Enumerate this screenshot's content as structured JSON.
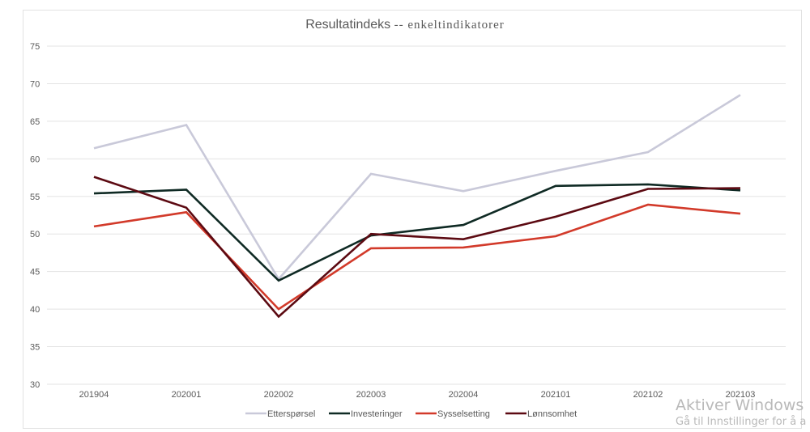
{
  "chart_data": {
    "type": "line",
    "title": "Resultatindeks",
    "subtitle": "-- enkeltindikatorer",
    "xlabel": "",
    "ylabel": "",
    "ylim": [
      30,
      75
    ],
    "yticks": [
      30,
      35,
      40,
      45,
      50,
      55,
      60,
      65,
      70,
      75
    ],
    "grid": true,
    "legend_position": "bottom",
    "categories": [
      "201904",
      "202001",
      "202002",
      "202003",
      "202004",
      "202101",
      "202102",
      "202103"
    ],
    "series": [
      {
        "name": "Etterspørsel",
        "color": "#c9c9d9",
        "values": [
          61.4,
          64.5,
          44.0,
          58.0,
          55.7,
          58.4,
          60.9,
          68.5
        ]
      },
      {
        "name": "Investeringer",
        "color": "#0f2a24",
        "values": [
          55.4,
          55.9,
          43.8,
          49.8,
          51.2,
          56.4,
          56.6,
          55.8
        ]
      },
      {
        "name": "Sysselsetting",
        "color": "#d23a2a",
        "values": [
          51.0,
          52.9,
          40.0,
          48.1,
          48.2,
          49.7,
          53.9,
          52.7
        ]
      },
      {
        "name": "Lønnsomhet",
        "color": "#5c0a12",
        "values": [
          57.6,
          53.5,
          39.0,
          50.0,
          49.3,
          52.3,
          56.0,
          56.1
        ]
      }
    ]
  },
  "watermark": {
    "line1": "Aktiver Windows",
    "line2": "Gå til Innstillinger for å a"
  }
}
